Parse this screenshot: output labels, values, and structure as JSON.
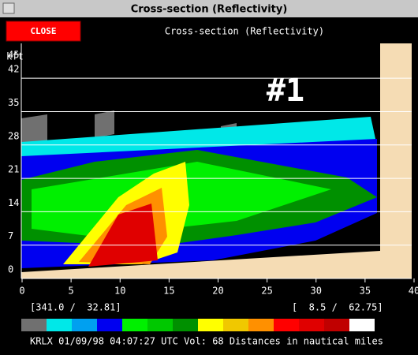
{
  "window": {
    "title": "Cross-section (Reflectivity)",
    "close_button": "CLOSE",
    "header": "Cross-section (Reflectivity)"
  },
  "plot": {
    "y_unit": "kft",
    "annotation": "#1",
    "yticks": [
      0,
      7,
      14,
      21,
      28,
      35,
      42,
      45
    ],
    "ylim": [
      0,
      45
    ],
    "xticks": [
      0,
      5,
      10,
      15,
      20,
      25,
      30,
      35,
      40
    ],
    "xlim": [
      0,
      40
    ]
  },
  "coords": {
    "left": "[341.0 /  32.81]",
    "right": "[  8.5 /  62.75]"
  },
  "legend_colors": [
    "#707070",
    "#00e8e8",
    "#00a0f0",
    "#0000f0",
    "#00f000",
    "#00c800",
    "#009000",
    "#ffff00",
    "#f0c800",
    "#ff9000",
    "#ff0000",
    "#e00000",
    "#c00000",
    "#ffffff"
  ],
  "status": "KRLX 01/09/98 04:07:27 UTC Vol: 68 Distances in nautical miles"
}
